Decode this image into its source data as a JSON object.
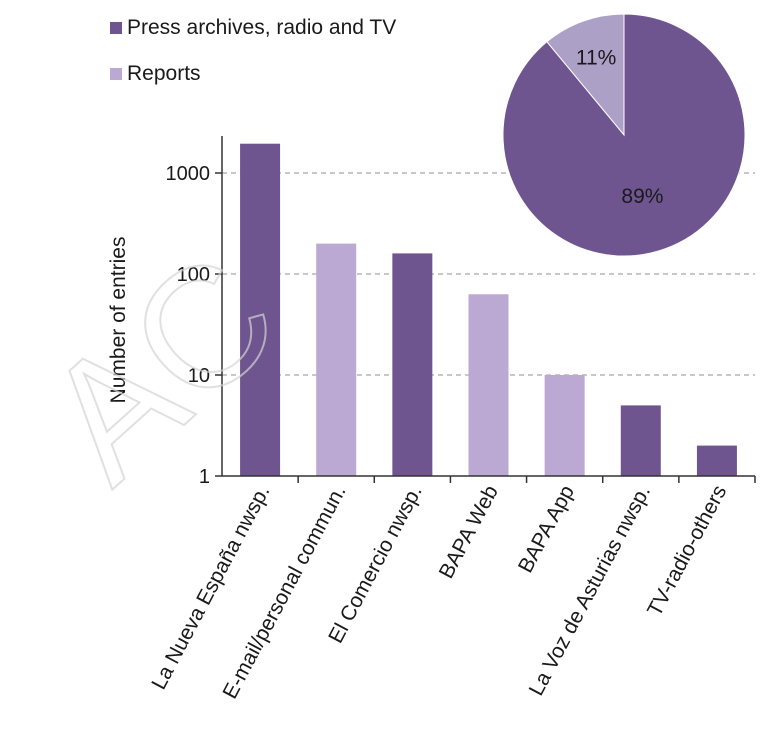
{
  "chart_data": [
    {
      "type": "bar",
      "scale": "log",
      "ylabel": "Number of entries",
      "ylim": [
        1,
        2000
      ],
      "yticks": [
        "1",
        "10",
        "100",
        "1000"
      ],
      "grid": true,
      "categories": [
        "La Nueva España nwsp.",
        "E-mail/personal commun.",
        "El Comercio nwsp.",
        "BAPA Web",
        "BAPA App",
        "La Voz de Asturias nwsp.",
        "TV-radio-others"
      ],
      "values": [
        1950,
        200,
        160,
        63,
        10,
        5,
        2
      ],
      "groups": [
        "Press archives, radio and TV",
        "Reports",
        "Press archives, radio and TV",
        "Reports",
        "Reports",
        "Press archives, radio and TV",
        "Press archives, radio and TV"
      ],
      "legend": [
        {
          "label": "Press archives, radio and TV",
          "color": "#6f5590"
        },
        {
          "label": "Reports",
          "color": "#bba9d3"
        }
      ],
      "legend_position": "top-left"
    },
    {
      "type": "pie",
      "labels": [
        "Press archives, radio and TV",
        "Reports"
      ],
      "values": [
        89,
        11
      ],
      "display_labels": [
        "89%",
        "11%"
      ],
      "colors": [
        "#6f5590",
        "#ada0c7"
      ],
      "position": "top-right"
    }
  ]
}
